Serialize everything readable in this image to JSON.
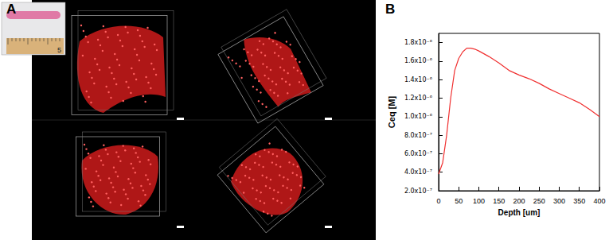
{
  "panel_labels": [
    "A",
    "B"
  ],
  "ruler_label": "5",
  "chart_data": {
    "type": "line",
    "x_label": "Depth [um]",
    "y_label": "Ceq [M]",
    "x": [
      0,
      10,
      20,
      30,
      40,
      50,
      60,
      70,
      80,
      90,
      100,
      125,
      150,
      175,
      200,
      225,
      250,
      275,
      300,
      325,
      350,
      375,
      400
    ],
    "series": [
      {
        "name": "Ceq",
        "color": "#f03030",
        "values": [
          3.8e-07,
          5e-07,
          8e-07,
          1.2e-06,
          1.5e-06,
          1.63e-06,
          1.7e-06,
          1.74e-06,
          1.74e-06,
          1.73e-06,
          1.71e-06,
          1.65e-06,
          1.58e-06,
          1.5e-06,
          1.45e-06,
          1.41e-06,
          1.36e-06,
          1.3e-06,
          1.25e-06,
          1.2e-06,
          1.15e-06,
          1.08e-06,
          1e-06
        ]
      }
    ],
    "xlim": [
      0,
      400
    ],
    "xticks": [
      0,
      50,
      100,
      150,
      200,
      250,
      300,
      350,
      400
    ],
    "ylim": [
      2e-07,
      1.9e-06
    ],
    "yticks": [
      {
        "value": 2e-07,
        "label": "2.0x10⁻⁷"
      },
      {
        "value": 4e-07,
        "label": "4.0x10⁻⁷"
      },
      {
        "value": 6e-07,
        "label": "6.0x10⁻⁷"
      },
      {
        "value": 8e-07,
        "label": "8.0x10⁻⁷"
      },
      {
        "value": 1e-06,
        "label": "1.0x10⁻⁶"
      },
      {
        "value": 1.2e-06,
        "label": "1.2x10⁻⁶"
      },
      {
        "value": 1.4e-06,
        "label": "1.4x10⁻⁶"
      },
      {
        "value": 1.6e-06,
        "label": "1.6x10⁻⁶"
      },
      {
        "value": 1.8e-06,
        "label": "1.8x10⁻⁶"
      }
    ],
    "grid": false,
    "line_style": "solid",
    "marker": "none"
  }
}
